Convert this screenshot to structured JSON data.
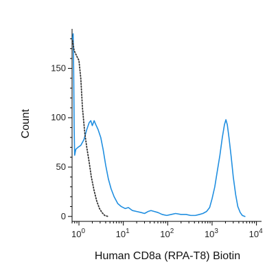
{
  "chart_data": {
    "type": "line",
    "title": "",
    "xlabel": "Human CD8a (RPA-T8) Biotin",
    "ylabel": "Count",
    "xscale": "log",
    "xlim": [
      0.7,
      13000
    ],
    "ylim": [
      -5,
      190
    ],
    "yticks": [
      0,
      50,
      100,
      150
    ],
    "ytick_labels": [
      "0",
      "50",
      "100",
      "150"
    ],
    "xticks": [
      1,
      10,
      100,
      1000,
      10000
    ],
    "xtick_labels": [
      {
        "base": "10",
        "exp": "0"
      },
      {
        "base": "10",
        "exp": "1"
      },
      {
        "base": "10",
        "exp": "2"
      },
      {
        "base": "10",
        "exp": "3"
      },
      {
        "base": "10",
        "exp": "4"
      }
    ],
    "grid": false,
    "series": [
      {
        "style": "solid",
        "color": "#1f8ee0",
        "points": [
          [
            0.72,
            180
          ],
          [
            0.74,
            185
          ],
          [
            0.76,
            150
          ],
          [
            0.78,
            90
          ],
          [
            0.8,
            62
          ],
          [
            0.85,
            68
          ],
          [
            0.95,
            70
          ],
          [
            1.1,
            72
          ],
          [
            1.3,
            78
          ],
          [
            1.5,
            88
          ],
          [
            1.7,
            95
          ],
          [
            1.85,
            97
          ],
          [
            2.0,
            92
          ],
          [
            2.2,
            97
          ],
          [
            2.4,
            93
          ],
          [
            2.7,
            88
          ],
          [
            3.1,
            80
          ],
          [
            3.5,
            68
          ],
          [
            4.0,
            52
          ],
          [
            4.6,
            38
          ],
          [
            5.3,
            28
          ],
          [
            6.2,
            20
          ],
          [
            7.5,
            13
          ],
          [
            9,
            10
          ],
          [
            11,
            8
          ],
          [
            13,
            9
          ],
          [
            16,
            6
          ],
          [
            20,
            5
          ],
          [
            25,
            4
          ],
          [
            30,
            3
          ],
          [
            36,
            5
          ],
          [
            42,
            6
          ],
          [
            50,
            5
          ],
          [
            60,
            4
          ],
          [
            75,
            2
          ],
          [
            95,
            1
          ],
          [
            120,
            2
          ],
          [
            150,
            3
          ],
          [
            200,
            2
          ],
          [
            260,
            2
          ],
          [
            330,
            1
          ],
          [
            420,
            1
          ],
          [
            520,
            2
          ],
          [
            620,
            3
          ],
          [
            750,
            5
          ],
          [
            880,
            9
          ],
          [
            1000,
            18
          ],
          [
            1150,
            30
          ],
          [
            1300,
            45
          ],
          [
            1500,
            62
          ],
          [
            1700,
            80
          ],
          [
            1900,
            93
          ],
          [
            2050,
            98
          ],
          [
            2200,
            93
          ],
          [
            2400,
            80
          ],
          [
            2700,
            60
          ],
          [
            3000,
            40
          ],
          [
            3400,
            22
          ],
          [
            3800,
            10
          ],
          [
            4300,
            4
          ],
          [
            4800,
            1
          ],
          [
            5500,
            0
          ]
        ]
      },
      {
        "style": "dotted",
        "color": "#333333",
        "points": [
          [
            0.72,
            178
          ],
          [
            0.78,
            168
          ],
          [
            0.9,
            162
          ],
          [
            1.0,
            158
          ],
          [
            1.1,
            140
          ],
          [
            1.2,
            110
          ],
          [
            1.35,
            85
          ],
          [
            1.5,
            70
          ],
          [
            1.7,
            55
          ],
          [
            1.9,
            40
          ],
          [
            2.2,
            26
          ],
          [
            2.5,
            16
          ],
          [
            2.9,
            8
          ],
          [
            3.3,
            4
          ],
          [
            3.8,
            1
          ],
          [
            4.5,
            0
          ]
        ]
      }
    ]
  }
}
